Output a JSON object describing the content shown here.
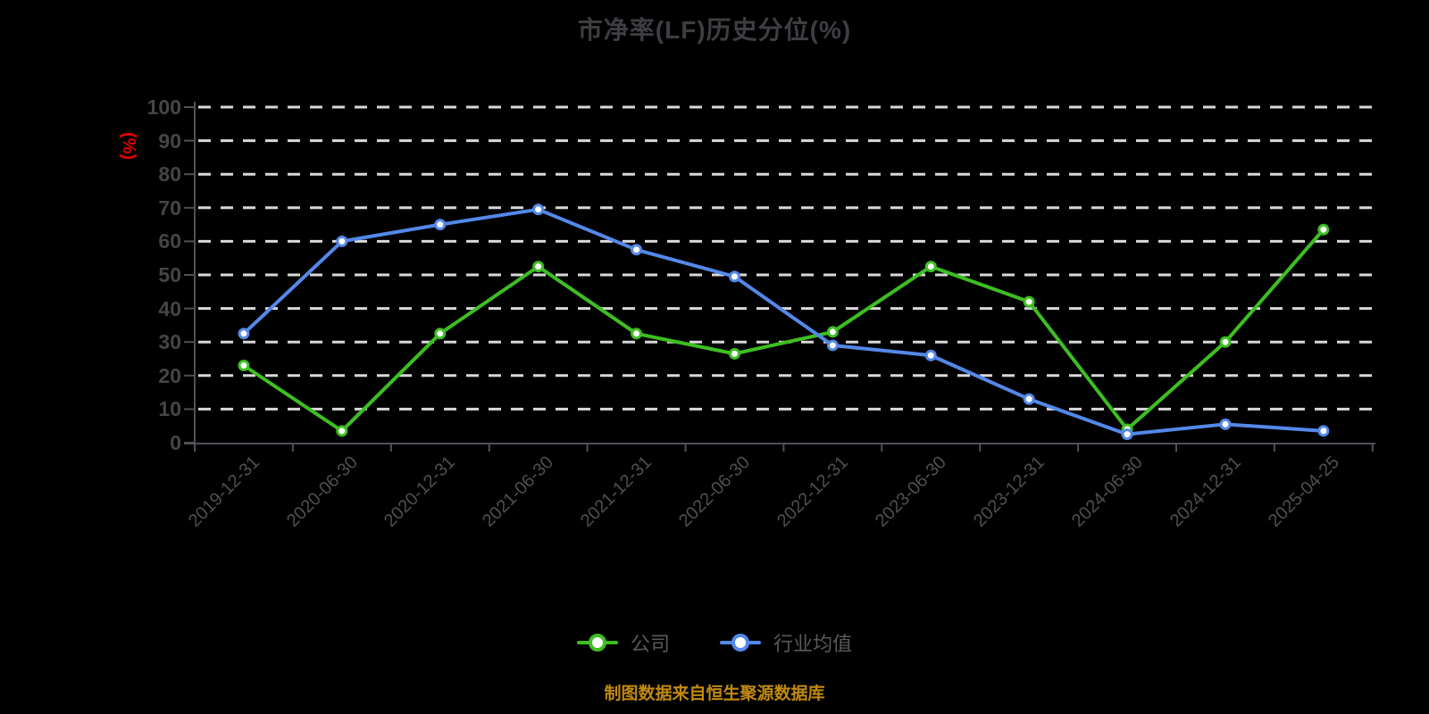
{
  "title": "市净率(LF)历史分位(%)",
  "footer": {
    "source_note": "制图数据来自恒生聚源数据库"
  },
  "colors": {
    "company": "#3dbe22",
    "industry": "#5488e8",
    "marker_fill": "#ffffff",
    "grid": "#d8d8d8",
    "axis": "#4e5158",
    "title_text": "#3c3e42",
    "axis_name_text": "#e60000",
    "footer_text": "#c18a10",
    "background": "#000000"
  },
  "chart_data": {
    "type": "line",
    "title": "市净率(LF)历史分位(%)",
    "xlabel": "",
    "ylabel": "(%)",
    "ylim": [
      0,
      100
    ],
    "ytick_interval": 10,
    "grid": true,
    "legend_position": "bottom",
    "categories": [
      "2019-12-31",
      "2020-06-30",
      "2020-12-31",
      "2021-06-30",
      "2021-12-31",
      "2022-06-30",
      "2022-12-31",
      "2023-06-30",
      "2023-12-31",
      "2024-06-30",
      "2024-12-31",
      "2025-04-25"
    ],
    "series": [
      {
        "name": "公司",
        "color_key": "company",
        "values": [
          23,
          3.5,
          32.5,
          52.5,
          32.5,
          26.5,
          33,
          52.5,
          42,
          4,
          30,
          63.5
        ]
      },
      {
        "name": "行业均值",
        "color_key": "industry",
        "values": [
          32.5,
          60,
          65,
          69.5,
          57.5,
          49.5,
          29,
          26,
          13,
          2.5,
          5.5,
          3.5
        ]
      }
    ]
  },
  "legend": {
    "items": [
      {
        "label": "公司"
      },
      {
        "label": "行业均值"
      }
    ]
  }
}
